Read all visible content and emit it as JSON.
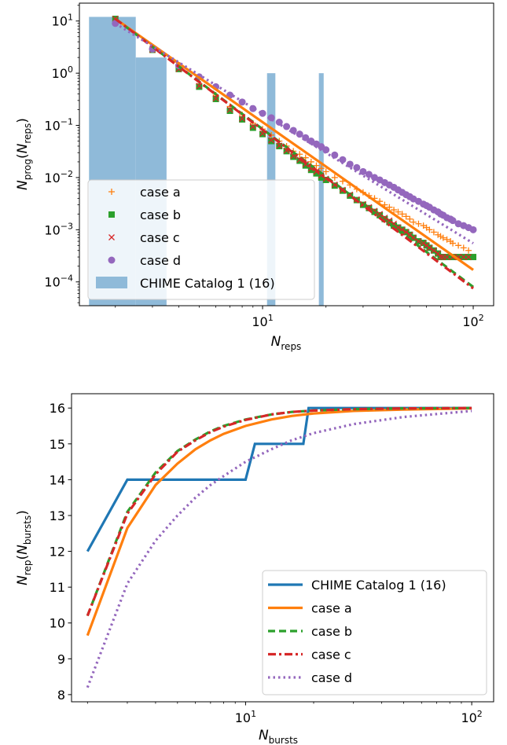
{
  "colors": {
    "case_a": "#ff7f0e",
    "case_b": "#2ca02c",
    "case_c": "#d62728",
    "case_d": "#9467bd",
    "chime": "#1f77b4",
    "chime_hist": "#8fbad9"
  },
  "chart_data": [
    {
      "type": "scatter",
      "xlabel": "N_reps",
      "ylabel": "N_prog(N_reps)",
      "xscale": "log",
      "yscale": "log",
      "xlim": [
        1.35,
        125
      ],
      "ylim": [
        3.5e-05,
        22
      ],
      "xticks": [
        10,
        100
      ],
      "xtick_labels": [
        {
          "base": "10",
          "exp": "1"
        },
        {
          "base": "10",
          "exp": "2"
        }
      ],
      "yticks": [
        0.0001,
        0.001,
        0.01,
        0.1,
        1,
        10
      ],
      "ytick_labels": [
        {
          "base": "10",
          "exp": "−4"
        },
        {
          "base": "10",
          "exp": "−3"
        },
        {
          "base": "10",
          "exp": "−2"
        },
        {
          "base": "10",
          "exp": "−1"
        },
        {
          "base": "10",
          "exp": "0"
        },
        {
          "base": "10",
          "exp": "1"
        }
      ],
      "legend_position": "lower-left",
      "legend": [
        {
          "label": "case a",
          "marker": "plus",
          "color_key": "case_a"
        },
        {
          "label": "case b",
          "marker": "square",
          "color_key": "case_b"
        },
        {
          "label": "case c",
          "marker": "x",
          "color_key": "case_c"
        },
        {
          "label": "case d",
          "marker": "circle",
          "color_key": "case_d"
        },
        {
          "label": "CHIME Catalog 1 (16)",
          "marker": "patch",
          "color_key": "chime_hist"
        }
      ],
      "histogram": {
        "name": "CHIME Catalog 1 (16)",
        "bars": [
          {
            "x0": 1.5,
            "x1": 2.5,
            "value": 12
          },
          {
            "x0": 2.5,
            "x1": 3.5,
            "value": 2
          },
          {
            "x0": 10.5,
            "x1": 11.5,
            "value": 1
          },
          {
            "x0": 18.5,
            "x1": 19.5,
            "value": 1
          }
        ]
      },
      "fit_lines": [
        {
          "series": "case a",
          "style": "solid",
          "x": [
            2,
            100
          ],
          "y": [
            11,
            0.00017
          ]
        },
        {
          "series": "case b",
          "style": "dashed",
          "x": [
            2,
            100
          ],
          "y": [
            11,
            8e-05
          ]
        },
        {
          "series": "case c",
          "style": "dashdot",
          "x": [
            2,
            100
          ],
          "y": [
            11,
            7.5e-05
          ]
        },
        {
          "series": "case d",
          "style": "dotted",
          "x": [
            2,
            100
          ],
          "y": [
            9,
            0.00055
          ]
        }
      ],
      "series": [
        {
          "name": "case a",
          "marker": "plus",
          "color_key": "case_a",
          "x": [
            2,
            3,
            4,
            5,
            6,
            7,
            8,
            9,
            10,
            11,
            12,
            13,
            14,
            15,
            16,
            17,
            18,
            19,
            20,
            22,
            24,
            26,
            28,
            30,
            32,
            34,
            36,
            38,
            40,
            42,
            44,
            46,
            48,
            50,
            52,
            55,
            58,
            60,
            62,
            65,
            68,
            70,
            72,
            75,
            78,
            80,
            85,
            90,
            95
          ],
          "y": [
            11,
            2.9,
            1.3,
            0.62,
            0.38,
            0.23,
            0.16,
            0.11,
            0.085,
            0.065,
            0.05,
            0.04,
            0.032,
            0.028,
            0.024,
            0.02,
            0.017,
            0.015,
            0.013,
            0.01,
            0.0085,
            0.0072,
            0.006,
            0.0052,
            0.0045,
            0.004,
            0.0035,
            0.003,
            0.0027,
            0.0024,
            0.0022,
            0.002,
            0.0018,
            0.0016,
            0.0014,
            0.0013,
            0.0012,
            0.0011,
            0.001,
            0.0009,
            0.0008,
            0.00075,
            0.0007,
            0.00065,
            0.0006,
            0.00055,
            0.0005,
            0.00045,
            0.0004
          ]
        },
        {
          "name": "case b",
          "marker": "square",
          "color_key": "case_b",
          "x": [
            2,
            3,
            4,
            5,
            6,
            7,
            8,
            9,
            10,
            11,
            12,
            13,
            14,
            15,
            16,
            17,
            18,
            19,
            20,
            22,
            24,
            26,
            28,
            30,
            32,
            34,
            36,
            38,
            40,
            42,
            44,
            46,
            48,
            50,
            52,
            55,
            58,
            60,
            62,
            65,
            68,
            70,
            72,
            75,
            80,
            85,
            90,
            95,
            100
          ],
          "y": [
            11,
            2.8,
            1.2,
            0.55,
            0.32,
            0.19,
            0.13,
            0.09,
            0.068,
            0.05,
            0.04,
            0.032,
            0.025,
            0.021,
            0.017,
            0.014,
            0.012,
            0.01,
            0.009,
            0.007,
            0.0056,
            0.0045,
            0.0037,
            0.003,
            0.0026,
            0.0022,
            0.0019,
            0.0016,
            0.0014,
            0.0012,
            0.0011,
            0.001,
            0.0009,
            0.0008,
            0.0007,
            0.0006,
            0.00056,
            0.0005,
            0.00045,
            0.0004,
            0.00035,
            0.0003,
            0.0003,
            0.0003,
            0.0003,
            0.0003,
            0.0003,
            0.0003,
            0.0003
          ]
        },
        {
          "name": "case c",
          "marker": "x",
          "color_key": "case_c",
          "x": [
            2,
            3,
            4,
            5,
            6,
            7,
            8,
            9,
            10,
            11,
            12,
            13,
            14,
            15,
            16,
            17,
            18,
            19,
            20,
            22,
            24,
            26,
            28,
            30,
            32,
            34,
            36,
            38,
            40,
            42,
            44,
            46,
            48,
            50,
            52,
            55,
            58,
            60,
            62,
            65,
            68,
            70,
            72,
            75,
            80,
            85,
            90,
            95
          ],
          "y": [
            11,
            2.8,
            1.2,
            0.57,
            0.33,
            0.2,
            0.135,
            0.095,
            0.07,
            0.052,
            0.041,
            0.033,
            0.026,
            0.022,
            0.018,
            0.015,
            0.013,
            0.011,
            0.0095,
            0.0073,
            0.0058,
            0.0047,
            0.0038,
            0.0031,
            0.0027,
            0.0023,
            0.002,
            0.0017,
            0.0015,
            0.0013,
            0.0011,
            0.001,
            0.0009,
            0.0008,
            0.0007,
            0.0006,
            0.00055,
            0.0005,
            0.00045,
            0.0004,
            0.00035,
            0.0003,
            0.0003,
            0.0003,
            0.0003,
            0.0003,
            0.0003,
            0.0003
          ]
        },
        {
          "name": "case d",
          "marker": "circle",
          "color_key": "case_d",
          "x": [
            2,
            3,
            4,
            5,
            6,
            7,
            8,
            9,
            10,
            11,
            12,
            13,
            14,
            15,
            16,
            17,
            18,
            19,
            20,
            22,
            24,
            26,
            28,
            30,
            32,
            34,
            36,
            38,
            40,
            42,
            44,
            46,
            48,
            50,
            52,
            55,
            58,
            60,
            62,
            65,
            68,
            70,
            72,
            75,
            78,
            80,
            85,
            90,
            95,
            100
          ],
          "y": [
            9,
            2.9,
            1.4,
            0.85,
            0.55,
            0.38,
            0.28,
            0.21,
            0.17,
            0.14,
            0.115,
            0.095,
            0.08,
            0.068,
            0.058,
            0.05,
            0.044,
            0.039,
            0.034,
            0.027,
            0.022,
            0.018,
            0.0155,
            0.013,
            0.0115,
            0.01,
            0.009,
            0.008,
            0.0072,
            0.0065,
            0.0058,
            0.0052,
            0.0047,
            0.0043,
            0.0039,
            0.0035,
            0.0031,
            0.0029,
            0.0027,
            0.0024,
            0.0022,
            0.002,
            0.0019,
            0.0017,
            0.0016,
            0.0015,
            0.0013,
            0.0012,
            0.0011,
            0.001
          ]
        }
      ]
    },
    {
      "type": "line",
      "xlabel": "N_bursts",
      "ylabel": "N_rep(N_bursts)",
      "xscale": "log",
      "xlim": [
        1.7,
        125
      ],
      "ylim": [
        7.8,
        16.4
      ],
      "xticks": [
        10,
        100
      ],
      "xtick_labels": [
        {
          "base": "10",
          "exp": "1"
        },
        {
          "base": "10",
          "exp": "2"
        }
      ],
      "yticks": [
        8,
        9,
        10,
        11,
        12,
        13,
        14,
        15,
        16
      ],
      "ytick_labels": [
        "8",
        "9",
        "10",
        "11",
        "12",
        "13",
        "14",
        "15",
        "16"
      ],
      "legend_position": "lower-right",
      "legend": [
        {
          "label": "CHIME Catalog 1 (16)",
          "style": "solid",
          "color_key": "chime"
        },
        {
          "label": "case a",
          "style": "solid",
          "color_key": "case_a"
        },
        {
          "label": "case b",
          "style": "dashed",
          "color_key": "case_b"
        },
        {
          "label": "case c",
          "style": "dashdot",
          "color_key": "case_c"
        },
        {
          "label": "case d",
          "style": "dotted",
          "color_key": "case_d"
        }
      ],
      "series": [
        {
          "name": "CHIME Catalog 1 (16)",
          "style": "solid",
          "color_key": "chime",
          "x": [
            2,
            3,
            10,
            11,
            18,
            19,
            100
          ],
          "y": [
            12,
            14,
            14,
            15,
            15,
            16,
            16
          ]
        },
        {
          "name": "case a",
          "style": "solid",
          "color_key": "case_a",
          "x": [
            2,
            3,
            4,
            5,
            6,
            7,
            8,
            10,
            13,
            16,
            20,
            30,
            50,
            100
          ],
          "y": [
            9.65,
            12.65,
            13.85,
            14.45,
            14.85,
            15.1,
            15.28,
            15.5,
            15.68,
            15.78,
            15.85,
            15.92,
            15.96,
            15.99
          ]
        },
        {
          "name": "case b",
          "style": "dashed",
          "color_key": "case_b",
          "x": [
            2,
            3,
            4,
            5,
            6,
            7,
            8,
            10,
            13,
            16,
            20,
            30,
            50,
            100
          ],
          "y": [
            10.2,
            13.1,
            14.2,
            14.8,
            15.12,
            15.35,
            15.5,
            15.68,
            15.82,
            15.89,
            15.93,
            15.97,
            15.99,
            16.0
          ]
        },
        {
          "name": "case c",
          "style": "dashdot",
          "color_key": "case_c",
          "x": [
            2,
            3,
            4,
            5,
            6,
            7,
            8,
            10,
            13,
            16,
            20,
            30,
            50,
            100
          ],
          "y": [
            10.2,
            13.05,
            14.15,
            14.78,
            15.1,
            15.33,
            15.48,
            15.67,
            15.82,
            15.89,
            15.93,
            15.97,
            15.99,
            16.0
          ]
        },
        {
          "name": "case d",
          "style": "dotted",
          "color_key": "case_d",
          "x": [
            2,
            3,
            4,
            5,
            6,
            7,
            8,
            10,
            13,
            16,
            20,
            30,
            50,
            100
          ],
          "y": [
            8.2,
            11.1,
            12.3,
            13.0,
            13.5,
            13.85,
            14.1,
            14.5,
            14.85,
            15.1,
            15.3,
            15.55,
            15.75,
            15.92
          ]
        }
      ]
    }
  ]
}
